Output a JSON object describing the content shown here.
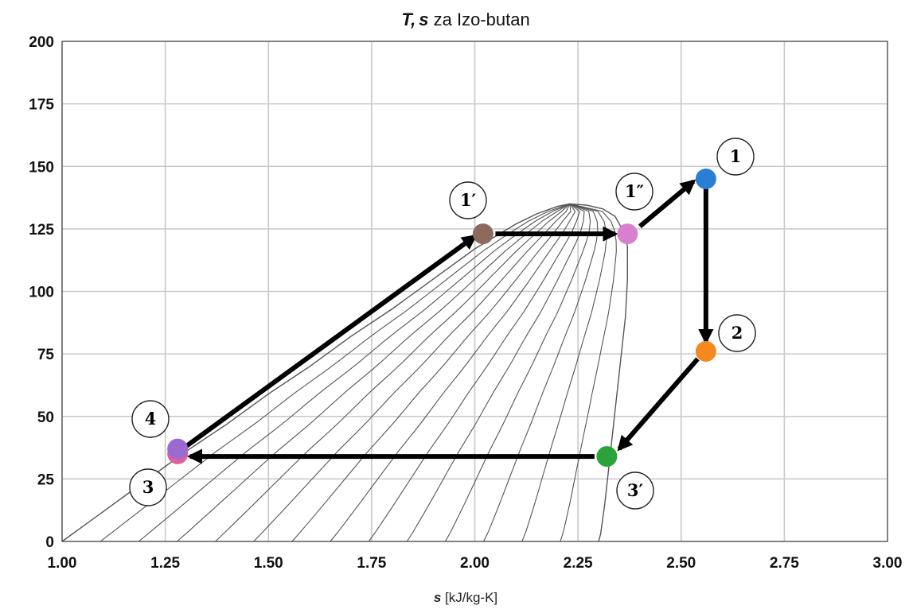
{
  "chart_data": {
    "type": "scatter",
    "title_var_t": "T",
    "title_sep": ",",
    "title_var_s": "s",
    "title_rest": " za Izo-butan",
    "xlabel_var": "s",
    "xlabel_unit": " [kJ/kg-K]",
    "xlim": [
      1.0,
      3.0
    ],
    "ylim": [
      0,
      200
    ],
    "xticks": [
      "1.00",
      "1.25",
      "1.50",
      "1.75",
      "2.00",
      "2.25",
      "2.50",
      "2.75",
      "3.00"
    ],
    "yticks": [
      "0",
      "25",
      "50",
      "75",
      "100",
      "125",
      "150",
      "175",
      "200"
    ],
    "grid": true,
    "saturation_dome": {
      "liquid": [
        [
          1.0,
          0
        ],
        [
          1.1,
          12
        ],
        [
          1.2,
          24
        ],
        [
          1.3,
          36
        ],
        [
          1.4,
          47
        ],
        [
          1.5,
          59
        ],
        [
          1.6,
          70
        ],
        [
          1.7,
          82
        ],
        [
          1.8,
          93
        ],
        [
          1.9,
          105
        ],
        [
          2.0,
          117
        ],
        [
          2.05,
          122
        ],
        [
          2.1,
          127
        ],
        [
          2.15,
          131
        ],
        [
          2.2,
          134
        ],
        [
          2.23,
          135
        ]
      ],
      "vapor": [
        [
          2.23,
          135
        ],
        [
          2.27,
          134.5
        ],
        [
          2.31,
          133
        ],
        [
          2.34,
          130
        ],
        [
          2.36,
          124
        ],
        [
          2.37,
          118
        ],
        [
          2.37,
          105
        ],
        [
          2.365,
          90
        ],
        [
          2.355,
          75
        ],
        [
          2.345,
          60
        ],
        [
          2.335,
          45
        ],
        [
          2.325,
          30
        ],
        [
          2.315,
          15
        ],
        [
          2.305,
          3
        ],
        [
          2.3,
          0
        ]
      ]
    },
    "quality_lines_count": 13,
    "points": [
      {
        "label": "1",
        "s": 2.56,
        "T": 145,
        "color": "#2a7fd4"
      },
      {
        "label": "1′",
        "s": 2.02,
        "T": 123,
        "color": "#8c6a5e"
      },
      {
        "label": "1″",
        "s": 2.37,
        "T": 123,
        "color": "#d97fcf"
      },
      {
        "label": "2",
        "s": 2.56,
        "T": 76,
        "color": "#f5891f"
      },
      {
        "label": "3′",
        "s": 2.32,
        "T": 34,
        "color": "#2aa33a"
      },
      {
        "label": "3",
        "s": 1.28,
        "T": 35,
        "color": "#e0609a"
      },
      {
        "label": "4",
        "s": 1.28,
        "T": 37,
        "color": "#9a6ad0"
      }
    ],
    "arrows": [
      {
        "from": [
          1.3,
          38
        ],
        "to": [
          2.0,
          122
        ]
      },
      {
        "from": [
          2.05,
          123
        ],
        "to": [
          2.34,
          123
        ]
      },
      {
        "from": [
          2.4,
          126
        ],
        "to": [
          2.53,
          144
        ]
      },
      {
        "from": [
          2.56,
          141
        ],
        "to": [
          2.56,
          80
        ]
      },
      {
        "from": [
          2.54,
          73
        ],
        "to": [
          2.35,
          37
        ]
      },
      {
        "from": [
          2.29,
          34
        ],
        "to": [
          1.31,
          34
        ]
      }
    ]
  }
}
